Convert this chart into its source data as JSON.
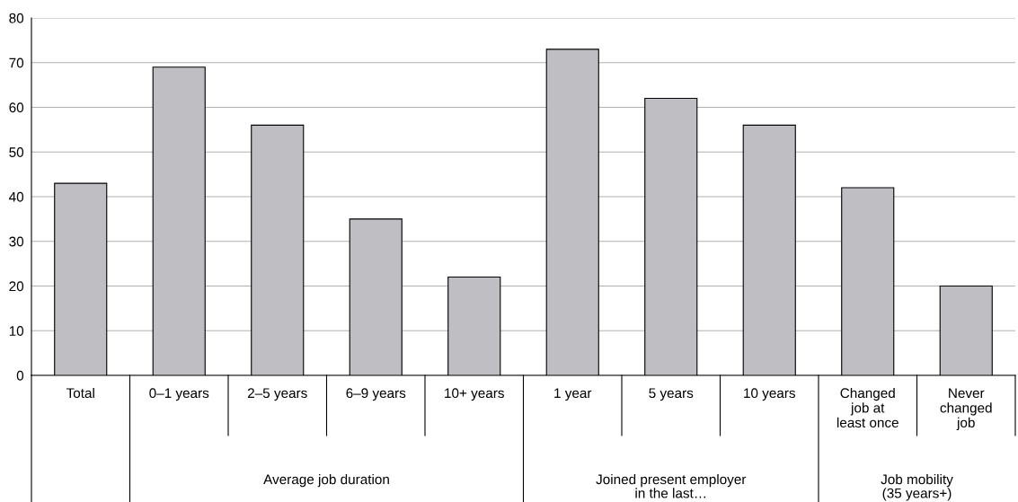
{
  "chart_data": {
    "type": "bar",
    "categories": [
      "Total",
      "0–1 years",
      "2–5 years",
      "6–9 years",
      "10+ years",
      "1 year",
      "5 years",
      "10 years",
      "Changed\njob at\nleast once",
      "Never\nchanged\njob"
    ],
    "values": [
      43,
      69,
      56,
      35,
      22,
      73,
      62,
      56,
      42,
      20
    ],
    "color": "#bebec3",
    "ylim": [
      0,
      80
    ],
    "yticks": [
      0,
      10,
      20,
      30,
      40,
      50,
      60,
      70,
      80
    ],
    "grid": "y",
    "annotations": [
      "Average job duration",
      "Joined present employer\nin the last…",
      "Job mobility\n(35 years+)"
    ]
  }
}
